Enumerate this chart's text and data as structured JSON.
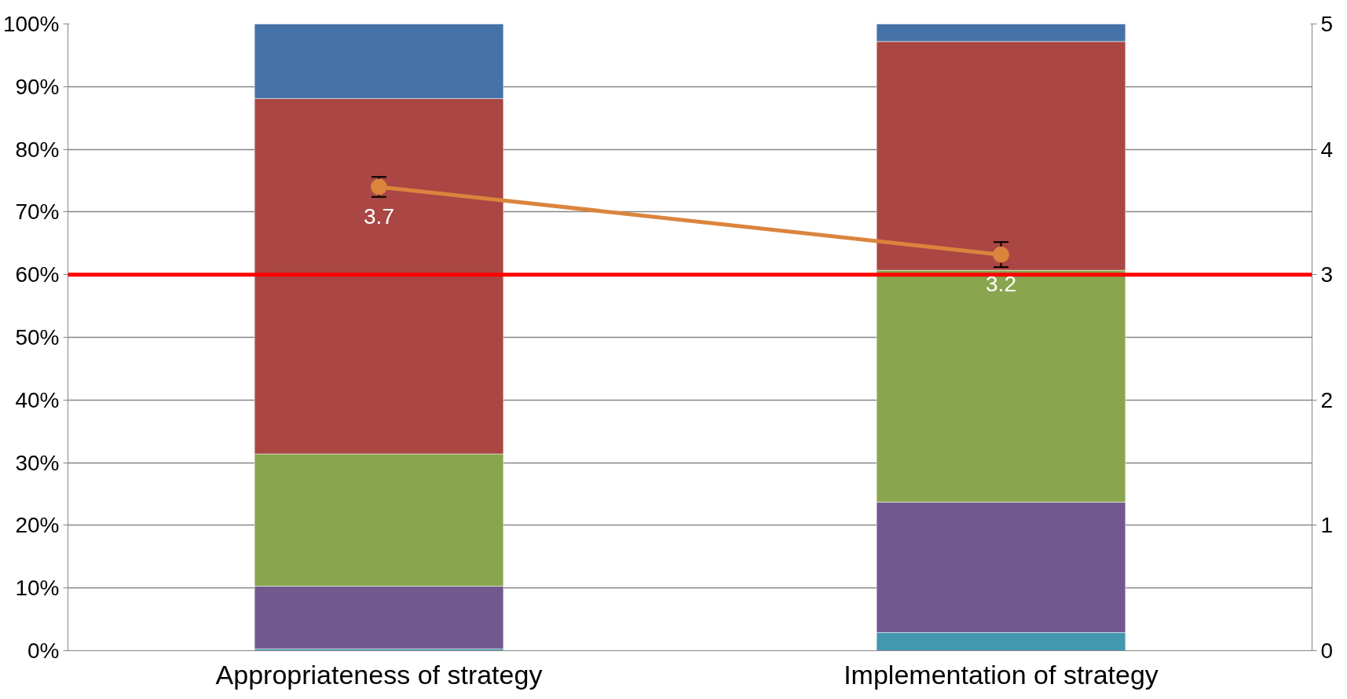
{
  "chart_data": {
    "type": "bar",
    "stacked": true,
    "categories": [
      "Appropriateness of strategy",
      "Implementation of strategy"
    ],
    "series": [
      {
        "color": "#4198af",
        "values": [
          0.3,
          2.9
        ]
      },
      {
        "color": "#71588f",
        "values": [
          10.0,
          20.8
        ]
      },
      {
        "color": "#89a54e",
        "values": [
          21.1,
          37.0
        ]
      },
      {
        "color": "#aa4643",
        "values": [
          56.7,
          36.5
        ]
      },
      {
        "color": "#4572a7",
        "values": [
          11.9,
          2.8
        ]
      },
      {
        "type": "line",
        "axis": "y2",
        "color": "#db843d",
        "marker": "circle",
        "values": [
          3.7,
          3.16
        ],
        "errors": [
          0.08,
          0.1
        ],
        "value_labels": [
          "3.7",
          "3.2"
        ]
      }
    ],
    "ylim": [
      0,
      100
    ],
    "yticks": [
      {
        "value": 0,
        "label": "0%"
      },
      {
        "value": 10,
        "label": "10%"
      },
      {
        "value": 20,
        "label": "20%"
      },
      {
        "value": 30,
        "label": "30%"
      },
      {
        "value": 40,
        "label": "40%"
      },
      {
        "value": 50,
        "label": "50%"
      },
      {
        "value": 60,
        "label": "60%"
      },
      {
        "value": 70,
        "label": "70%"
      },
      {
        "value": 80,
        "label": "80%"
      },
      {
        "value": 90,
        "label": "90%"
      },
      {
        "value": 100,
        "label": "100%"
      }
    ],
    "y2lim": [
      0,
      5
    ],
    "y2ticks": [
      {
        "value": 0,
        "label": "0"
      },
      {
        "value": 1,
        "label": "1"
      },
      {
        "value": 2,
        "label": "2"
      },
      {
        "value": 3,
        "label": "3"
      },
      {
        "value": 4,
        "label": "4"
      },
      {
        "value": 5,
        "label": "5"
      }
    ],
    "ref_lines": [
      {
        "axis": "y2",
        "value": 3,
        "color": "#ff0000"
      }
    ],
    "grid": "y"
  }
}
